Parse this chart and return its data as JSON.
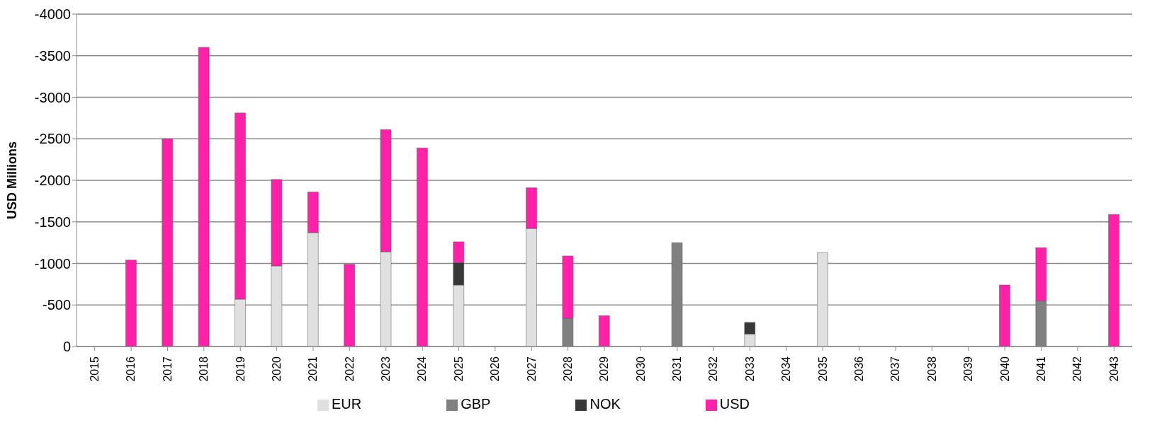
{
  "chart_data": {
    "type": "bar",
    "stacked": true,
    "ylabel": "USD Millions",
    "categories": [
      "2015",
      "2016",
      "2017",
      "2018",
      "2019",
      "2020",
      "2021",
      "2022",
      "2023",
      "2024",
      "2025",
      "2026",
      "2027",
      "2028",
      "2029",
      "2030",
      "2031",
      "2032",
      "2033",
      "2034",
      "2035",
      "2036",
      "2037",
      "2038",
      "2039",
      "2040",
      "2041",
      "2042",
      "2043"
    ],
    "series": [
      {
        "name": "EUR",
        "color": "#e0e0e0",
        "values": [
          null,
          null,
          null,
          null,
          -570,
          -970,
          -1370,
          null,
          -1140,
          null,
          -740,
          null,
          -1420,
          null,
          null,
          null,
          null,
          null,
          -150,
          null,
          -1130,
          null,
          null,
          null,
          null,
          null,
          null,
          null,
          null
        ]
      },
      {
        "name": "GBP",
        "color": "#808080",
        "values": [
          null,
          null,
          null,
          null,
          null,
          null,
          null,
          null,
          null,
          null,
          null,
          null,
          null,
          -340,
          null,
          null,
          -1250,
          null,
          null,
          null,
          null,
          null,
          null,
          null,
          null,
          null,
          -550,
          null,
          null
        ]
      },
      {
        "name": "NOK",
        "color": "#383838",
        "values": [
          null,
          null,
          null,
          null,
          null,
          null,
          null,
          null,
          null,
          null,
          -270,
          null,
          null,
          null,
          null,
          null,
          null,
          null,
          -140,
          null,
          null,
          null,
          null,
          null,
          null,
          null,
          null,
          null,
          null
        ]
      },
      {
        "name": "USD",
        "color": "#ff22a8",
        "values": [
          null,
          -1040,
          -2500,
          -3600,
          -2240,
          -1040,
          -490,
          -990,
          -1470,
          -2390,
          -250,
          null,
          -490,
          -750,
          -370,
          null,
          null,
          null,
          null,
          null,
          null,
          null,
          null,
          null,
          null,
          -740,
          -640,
          null,
          -1590
        ]
      }
    ],
    "ylim": [
      0,
      -4000
    ],
    "yticks": [
      0,
      -500,
      -1000,
      -1500,
      -2000,
      -2500,
      -3000,
      -3500,
      -4000
    ],
    "grid": "y",
    "legend": "bottom"
  }
}
